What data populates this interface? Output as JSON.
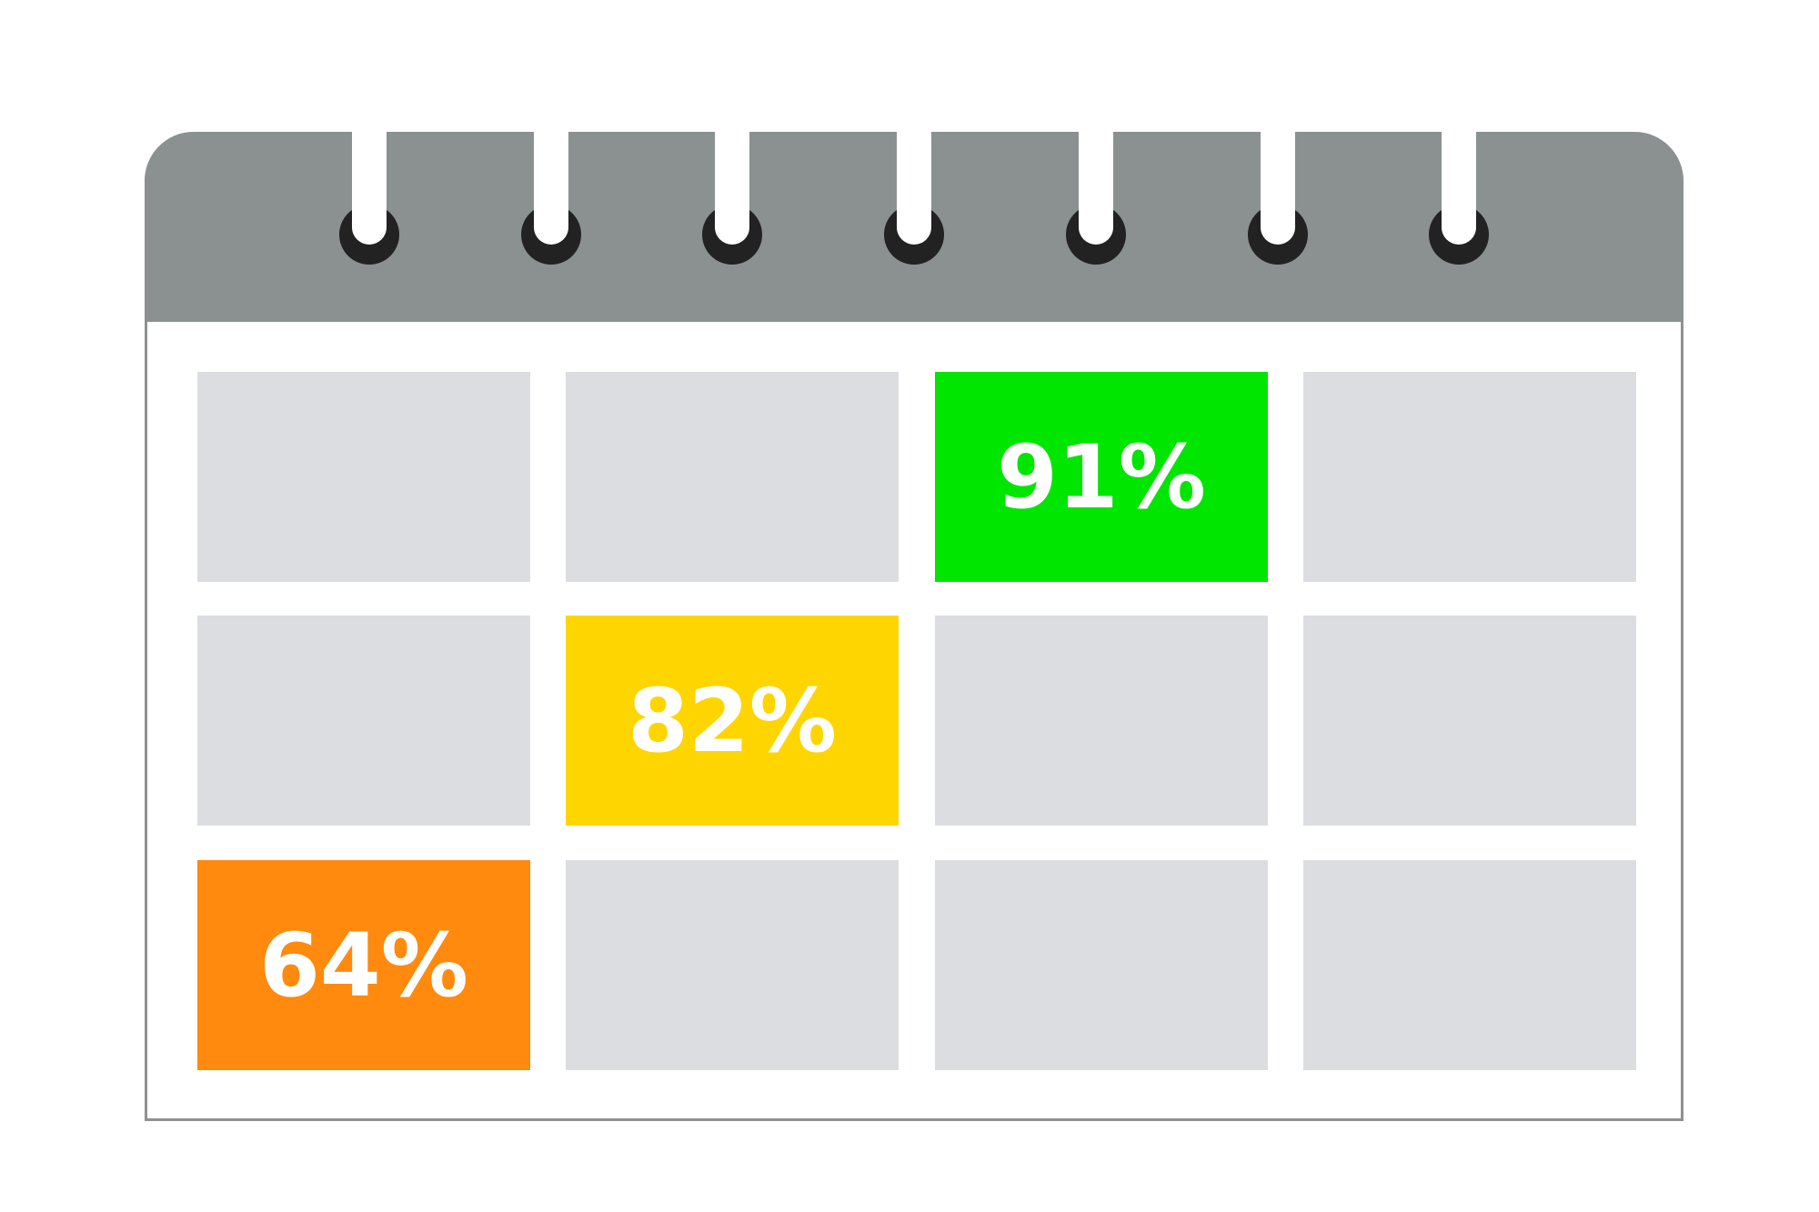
{
  "calendar": {
    "rings": 7,
    "rows": [
      [
        {
          "label": ""
        },
        {
          "label": ""
        },
        {
          "label": "91%",
          "color": "#00e600"
        },
        {
          "label": ""
        }
      ],
      [
        {
          "label": ""
        },
        {
          "label": "82%",
          "color": "#ffd500"
        },
        {
          "label": ""
        },
        {
          "label": ""
        }
      ],
      [
        {
          "label": "64%",
          "color": "#ff8a0e"
        },
        {
          "label": ""
        },
        {
          "label": ""
        },
        {
          "label": ""
        }
      ]
    ],
    "empty_color": "#dcdde0",
    "header_color": "#8b9190"
  }
}
